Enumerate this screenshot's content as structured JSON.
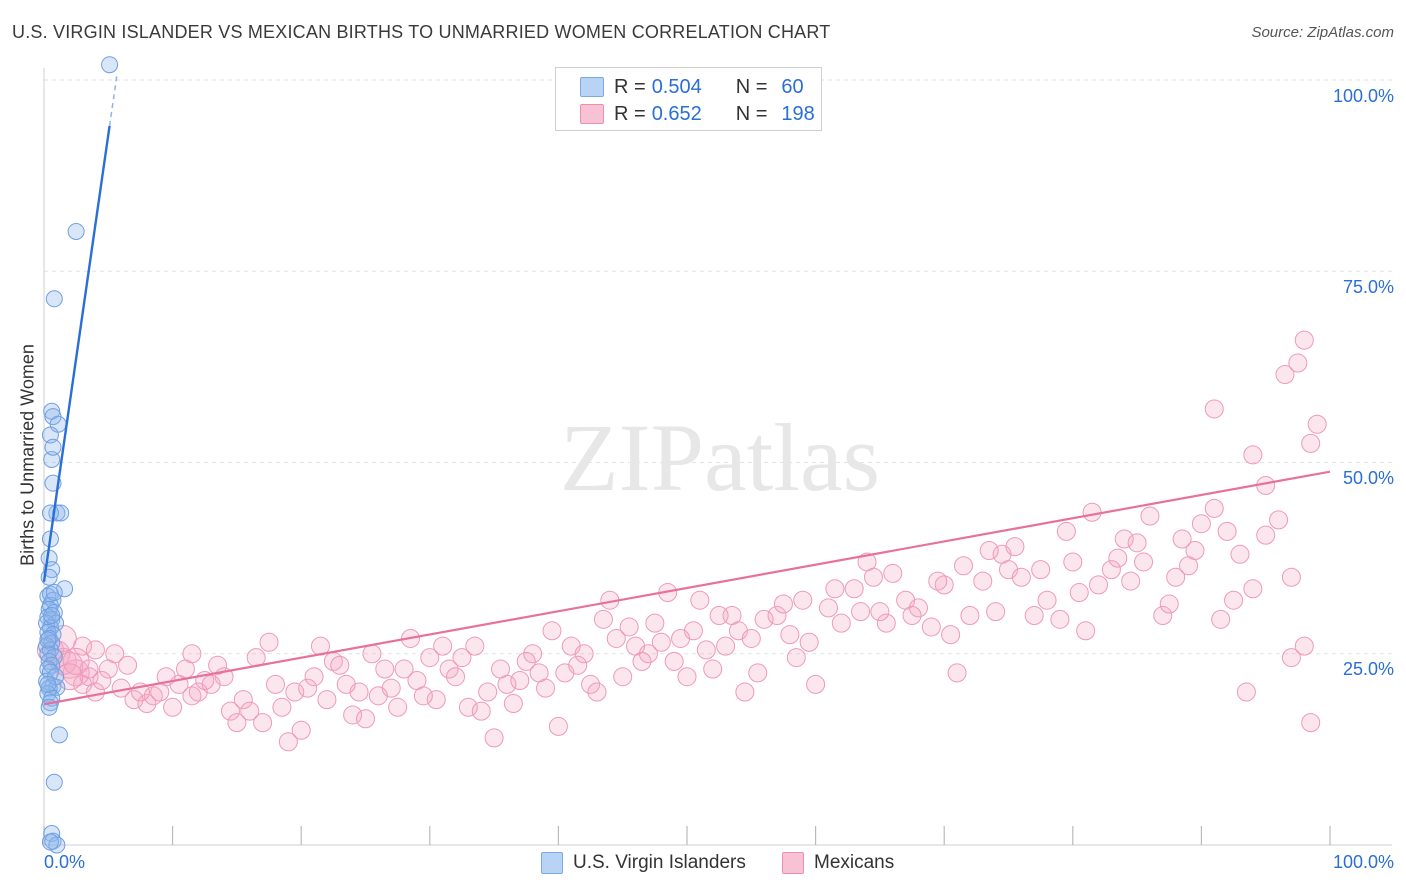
{
  "title": "U.S. VIRGIN ISLANDER VS MEXICAN BIRTHS TO UNMARRIED WOMEN CORRELATION CHART",
  "source": "Source: ZipAtlas.com",
  "watermark": "ZIPatlas",
  "legend_top": [
    {
      "r_label": "R =",
      "r_value": "0.504",
      "n_label": "N =",
      "n_value": "60",
      "color": "#6fa0e6"
    },
    {
      "r_label": "R =",
      "r_value": "0.652",
      "n_label": "N =",
      "n_value": "198",
      "color": "#f08fb0"
    }
  ],
  "legend_bottom": [
    {
      "label": "U.S. Virgin Islanders"
    },
    {
      "label": "Mexicans"
    }
  ],
  "chart_data": {
    "type": "scatter",
    "ylabel": "Births to Unmarried Women",
    "x_ticks": [
      "0.0%",
      "100.0%"
    ],
    "y_ticks": [
      "100.0%",
      "75.0%",
      "50.0%",
      "25.0%"
    ],
    "xlim": [
      0,
      100
    ],
    "ylim": [
      0,
      100
    ],
    "grid": true,
    "series": [
      {
        "name": "U.S. Virgin Islanders",
        "color": "#6fa0e6",
        "trend": {
          "x": [
            0,
            5.1
          ],
          "y": [
            34.4,
            94.0
          ],
          "dashed_to": [
            5.7,
            101.0
          ]
        },
        "points": [
          [
            5.1,
            102.0
          ],
          [
            2.5,
            80.2
          ],
          [
            0.8,
            71.4
          ],
          [
            0.6,
            56.7
          ],
          [
            0.7,
            56.0
          ],
          [
            1.1,
            55.0
          ],
          [
            0.5,
            53.6
          ],
          [
            0.6,
            50.4
          ],
          [
            0.7,
            47.3
          ],
          [
            1.0,
            43.4
          ],
          [
            1.3,
            43.4
          ],
          [
            0.5,
            43.4
          ],
          [
            0.4,
            37.5
          ],
          [
            0.6,
            36.0
          ],
          [
            1.6,
            33.5
          ],
          [
            0.5,
            32.8
          ],
          [
            0.3,
            32.5
          ],
          [
            0.7,
            32.0
          ],
          [
            0.5,
            31.3
          ],
          [
            0.4,
            30.8
          ],
          [
            0.8,
            30.4
          ],
          [
            0.3,
            29.8
          ],
          [
            0.6,
            29.5
          ],
          [
            0.9,
            29.0
          ],
          [
            0.2,
            29.0
          ],
          [
            0.5,
            28.4
          ],
          [
            0.3,
            27.8
          ],
          [
            0.7,
            27.5
          ],
          [
            0.4,
            27.0
          ],
          [
            0.6,
            26.4
          ],
          [
            0.2,
            26.0
          ],
          [
            0.5,
            25.5
          ],
          [
            0.3,
            25.0
          ],
          [
            0.8,
            24.6
          ],
          [
            0.4,
            24.0
          ],
          [
            0.6,
            23.5
          ],
          [
            0.3,
            23.0
          ],
          [
            0.5,
            22.6
          ],
          [
            0.2,
            21.4
          ],
          [
            0.7,
            20.8
          ],
          [
            1.0,
            20.6
          ],
          [
            0.4,
            20.5
          ],
          [
            0.3,
            19.8
          ],
          [
            0.6,
            19.2
          ],
          [
            0.5,
            18.6
          ],
          [
            1.2,
            14.4
          ],
          [
            0.8,
            8.2
          ],
          [
            0.6,
            1.5
          ],
          [
            0.7,
            0.5
          ],
          [
            1.0,
            0.0
          ],
          [
            0.5,
            0.4
          ],
          [
            0.4,
            18.0
          ],
          [
            0.9,
            22.0
          ],
          [
            0.3,
            26.8
          ],
          [
            0.6,
            30.0
          ],
          [
            0.8,
            33.0
          ],
          [
            0.4,
            35.0
          ],
          [
            0.5,
            40.0
          ],
          [
            0.7,
            52.0
          ],
          [
            0.3,
            21.0
          ]
        ]
      },
      {
        "name": "Mexicans",
        "color": "#f08fb0",
        "trend": {
          "x": [
            0,
            100
          ],
          "y": [
            18.4,
            48.8
          ]
        },
        "points": [
          [
            1.0,
            25.0
          ],
          [
            1.5,
            24.0
          ],
          [
            2.0,
            23.5
          ],
          [
            2.5,
            22.5
          ],
          [
            3.0,
            21.0
          ],
          [
            3.5,
            22.0
          ],
          [
            4.0,
            20.0
          ],
          [
            5.0,
            23.0
          ],
          [
            5.5,
            25.0
          ],
          [
            6.0,
            20.5
          ],
          [
            7.0,
            19.0
          ],
          [
            8.0,
            18.5
          ],
          [
            8.5,
            19.5
          ],
          [
            9.0,
            20.0
          ],
          [
            10.0,
            18.0
          ],
          [
            10.5,
            21.0
          ],
          [
            11.0,
            23.0
          ],
          [
            11.5,
            19.5
          ],
          [
            12.0,
            20.0
          ],
          [
            13.0,
            21.0
          ],
          [
            14.0,
            22.0
          ],
          [
            14.5,
            17.5
          ],
          [
            15.0,
            16.0
          ],
          [
            15.5,
            19.0
          ],
          [
            16.0,
            17.5
          ],
          [
            17.0,
            16.0
          ],
          [
            18.0,
            21.0
          ],
          [
            18.5,
            18.0
          ],
          [
            19.0,
            13.5
          ],
          [
            19.5,
            20.0
          ],
          [
            20.0,
            15.0
          ],
          [
            21.0,
            22.0
          ],
          [
            22.0,
            19.0
          ],
          [
            22.5,
            24.0
          ],
          [
            23.0,
            23.5
          ],
          [
            24.0,
            17.0
          ],
          [
            24.5,
            20.0
          ],
          [
            25.0,
            16.5
          ],
          [
            26.0,
            19.5
          ],
          [
            27.0,
            20.5
          ],
          [
            27.5,
            18.0
          ],
          [
            28.0,
            23.0
          ],
          [
            29.0,
            21.5
          ],
          [
            30.0,
            24.5
          ],
          [
            30.5,
            19.0
          ],
          [
            31.0,
            26.0
          ],
          [
            31.5,
            23.0
          ],
          [
            32.0,
            22.0
          ],
          [
            33.0,
            18.0
          ],
          [
            34.0,
            17.5
          ],
          [
            34.5,
            20.0
          ],
          [
            35.0,
            14.0
          ],
          [
            36.0,
            21.0
          ],
          [
            36.5,
            18.5
          ],
          [
            37.0,
            21.5
          ],
          [
            38.0,
            25.0
          ],
          [
            39.0,
            20.5
          ],
          [
            40.0,
            15.5
          ],
          [
            40.5,
            22.5
          ],
          [
            41.0,
            26.0
          ],
          [
            42.0,
            25.0
          ],
          [
            42.5,
            21.0
          ],
          [
            43.0,
            20.0
          ],
          [
            44.0,
            32.0
          ],
          [
            44.5,
            27.0
          ],
          [
            45.0,
            22.0
          ],
          [
            46.0,
            26.0
          ],
          [
            47.0,
            25.0
          ],
          [
            48.0,
            26.5
          ],
          [
            48.5,
            33.0
          ],
          [
            49.0,
            24.0
          ],
          [
            50.0,
            22.0
          ],
          [
            50.5,
            28.0
          ],
          [
            51.0,
            32.0
          ],
          [
            52.0,
            23.0
          ],
          [
            53.0,
            26.0
          ],
          [
            54.0,
            28.0
          ],
          [
            54.5,
            20.0
          ],
          [
            55.0,
            27.0
          ],
          [
            56.0,
            29.5
          ],
          [
            57.0,
            30.0
          ],
          [
            58.0,
            27.5
          ],
          [
            58.5,
            24.5
          ],
          [
            59.0,
            32.0
          ],
          [
            60.0,
            21.0
          ],
          [
            61.0,
            31.0
          ],
          [
            62.0,
            29.0
          ],
          [
            63.0,
            33.5
          ],
          [
            64.0,
            37.0
          ],
          [
            64.5,
            35.0
          ],
          [
            65.0,
            30.5
          ],
          [
            66.0,
            35.5
          ],
          [
            67.0,
            32.0
          ],
          [
            68.0,
            31.0
          ],
          [
            69.0,
            28.5
          ],
          [
            70.0,
            34.0
          ],
          [
            70.5,
            27.5
          ],
          [
            71.0,
            22.5
          ],
          [
            72.0,
            30.0
          ],
          [
            73.0,
            34.5
          ],
          [
            74.0,
            30.5
          ],
          [
            74.5,
            38.0
          ],
          [
            75.0,
            36.0
          ],
          [
            76.0,
            35.0
          ],
          [
            77.0,
            30.0
          ],
          [
            78.0,
            32.0
          ],
          [
            79.0,
            29.5
          ],
          [
            80.0,
            37.0
          ],
          [
            80.5,
            33.0
          ],
          [
            81.0,
            28.0
          ],
          [
            82.0,
            34.0
          ],
          [
            83.0,
            36.0
          ],
          [
            84.0,
            40.0
          ],
          [
            84.5,
            34.5
          ],
          [
            85.0,
            39.5
          ],
          [
            86.0,
            43.0
          ],
          [
            87.0,
            30.0
          ],
          [
            88.0,
            35.0
          ],
          [
            88.5,
            40.0
          ],
          [
            89.0,
            36.5
          ],
          [
            90.0,
            42.0
          ],
          [
            91.0,
            44.0
          ],
          [
            92.0,
            41.0
          ],
          [
            92.5,
            32.0
          ],
          [
            93.0,
            38.0
          ],
          [
            94.0,
            33.5
          ],
          [
            95.0,
            40.5
          ],
          [
            96.0,
            42.5
          ],
          [
            97.0,
            35.0
          ],
          [
            98.0,
            26.0
          ],
          [
            98.5,
            52.5
          ],
          [
            99.0,
            55.0
          ],
          [
            97.5,
            63.0
          ],
          [
            98.0,
            66.0
          ],
          [
            96.5,
            61.5
          ],
          [
            94.0,
            51.0
          ],
          [
            91.0,
            57.0
          ],
          [
            95.0,
            47.0
          ],
          [
            93.5,
            20.0
          ],
          [
            97.0,
            24.5
          ],
          [
            98.5,
            16.0
          ],
          [
            2.0,
            22.0
          ],
          [
            3.0,
            26.0
          ],
          [
            4.5,
            21.5
          ],
          [
            6.5,
            23.5
          ],
          [
            9.5,
            22.0
          ],
          [
            12.5,
            21.5
          ],
          [
            16.5,
            24.5
          ],
          [
            20.5,
            20.5
          ],
          [
            23.5,
            21.0
          ],
          [
            26.5,
            23.0
          ],
          [
            29.5,
            19.5
          ],
          [
            32.5,
            24.5
          ],
          [
            35.5,
            23.0
          ],
          [
            38.5,
            22.5
          ],
          [
            41.5,
            23.5
          ],
          [
            45.5,
            28.5
          ],
          [
            47.5,
            29.0
          ],
          [
            49.5,
            27.0
          ],
          [
            51.5,
            25.5
          ],
          [
            53.5,
            30.0
          ],
          [
            55.5,
            22.5
          ],
          [
            57.5,
            31.5
          ],
          [
            59.5,
            26.5
          ],
          [
            61.5,
            33.5
          ],
          [
            63.5,
            30.5
          ],
          [
            65.5,
            29.0
          ],
          [
            67.5,
            30.0
          ],
          [
            69.5,
            34.5
          ],
          [
            71.5,
            36.5
          ],
          [
            73.5,
            38.5
          ],
          [
            75.5,
            39.0
          ],
          [
            77.5,
            36.0
          ],
          [
            79.5,
            41.0
          ],
          [
            81.5,
            43.5
          ],
          [
            83.5,
            37.5
          ],
          [
            85.5,
            37.0
          ],
          [
            87.5,
            31.5
          ],
          [
            89.5,
            38.5
          ],
          [
            91.5,
            29.5
          ],
          [
            0.5,
            25.5
          ],
          [
            1.5,
            27.0
          ],
          [
            2.5,
            24.0
          ],
          [
            3.5,
            23.0
          ],
          [
            4.0,
            25.5
          ],
          [
            7.5,
            20.0
          ],
          [
            11.5,
            25.0
          ],
          [
            13.5,
            23.5
          ],
          [
            17.5,
            26.5
          ],
          [
            21.5,
            26.0
          ],
          [
            25.5,
            25.0
          ],
          [
            28.5,
            27.0
          ],
          [
            33.5,
            26.0
          ],
          [
            37.5,
            24.0
          ],
          [
            39.5,
            28.0
          ],
          [
            43.5,
            29.5
          ],
          [
            46.5,
            24.0
          ],
          [
            52.5,
            30.0
          ]
        ]
      }
    ]
  }
}
